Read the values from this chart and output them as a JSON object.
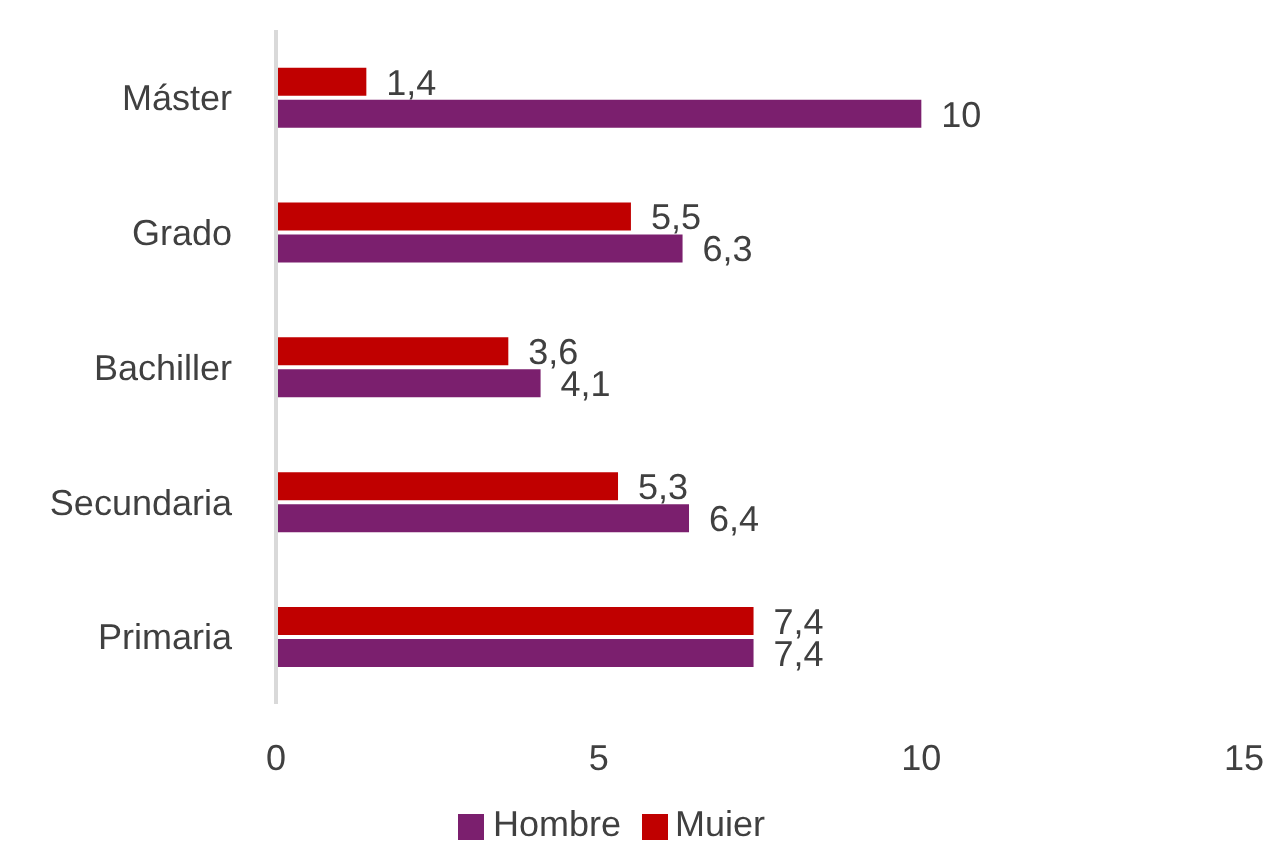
{
  "chart_data": {
    "type": "bar",
    "orientation": "horizontal",
    "categories": [
      "Máster",
      "Grado",
      "Bachiller",
      "Secundaria",
      "Primaria"
    ],
    "series": [
      {
        "name": "Muier",
        "color": "#c00000",
        "values": [
          1.4,
          5.5,
          3.6,
          5.3,
          7.4
        ],
        "value_labels": [
          "1,4",
          "5,5",
          "3,6",
          "5,3",
          "7,4"
        ]
      },
      {
        "name": "Hombre",
        "color": "#7b1f6e",
        "values": [
          10,
          6.3,
          4.1,
          6.4,
          7.4
        ],
        "value_labels": [
          "10",
          "6,3",
          "4,1",
          "6,4",
          "7,4"
        ]
      }
    ],
    "xlim": [
      0,
      15
    ],
    "xticks": [
      0,
      5,
      10,
      15
    ],
    "grid": false,
    "legend": "bottom"
  }
}
